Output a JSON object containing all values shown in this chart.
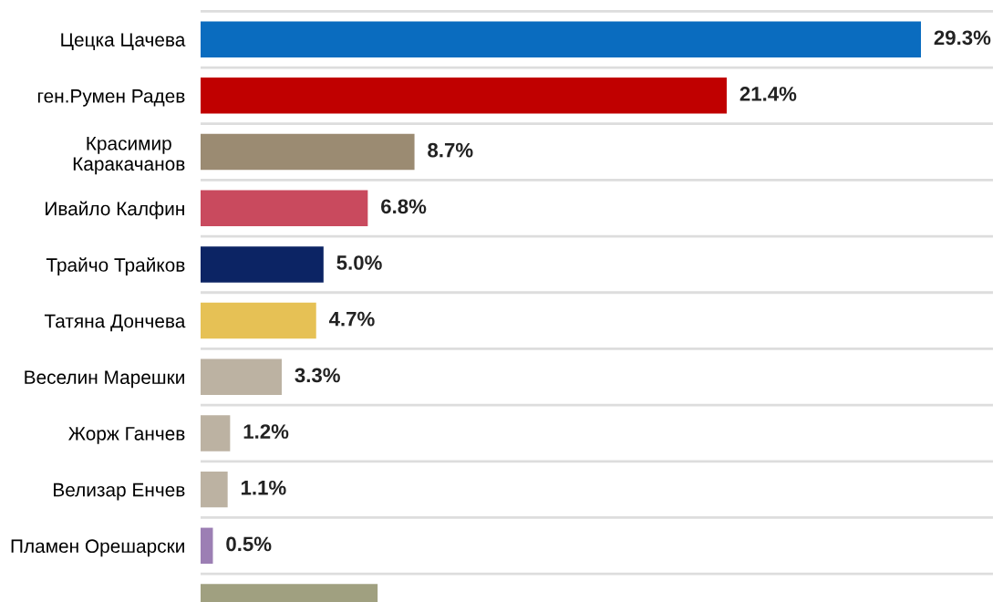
{
  "chart_data": {
    "type": "bar",
    "orientation": "horizontal",
    "categories": [
      "Цецка Цачева",
      "ген.Румен Радев",
      "Красимир\nКаракачанов",
      "Ивайло Калфин",
      "Трайчо Трайков",
      "Татяна Дончева",
      "Веселин Марешки",
      "Жорж Ганчев",
      "Велизар Енчев",
      "Пламен Орешарски",
      null
    ],
    "values": [
      29.3,
      21.4,
      8.7,
      6.8,
      5.0,
      4.7,
      3.3,
      1.2,
      1.1,
      0.5,
      7.2
    ],
    "value_labels": [
      "29.3%",
      "21.4%",
      "8.7%",
      "6.8%",
      "5.0%",
      "4.7%",
      "3.3%",
      "1.2%",
      "1.1%",
      "0.5%",
      null
    ],
    "colors": [
      "#0a6cbf",
      "#c00000",
      "#9b8b72",
      "#c94a5e",
      "#0c2464",
      "#e6c155",
      "#bcb2a2",
      "#bcb2a2",
      "#bcb2a2",
      "#9c7fb4",
      "#a0a080"
    ],
    "grid": "y",
    "tick_labels": "y"
  }
}
